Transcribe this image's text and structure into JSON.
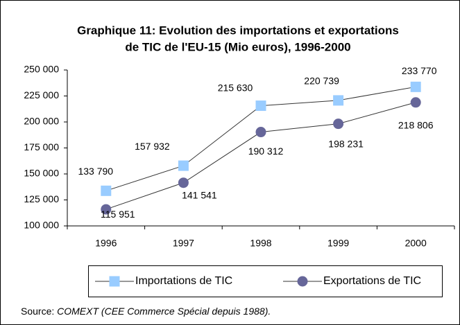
{
  "chart_data": {
    "type": "line",
    "title": [
      "Graphique 11: Evolution des importations et exportations",
      "de TIC de l'EU-15 (Mio euros), 1996-2000"
    ],
    "categories": [
      "1996",
      "1997",
      "1998",
      "1999",
      "2000"
    ],
    "series": [
      {
        "name": "Importations de TIC",
        "color": "#99ccff",
        "line_color": "#333333",
        "marker": "square",
        "values": [
          133790,
          157932,
          215630,
          220739,
          233770
        ],
        "value_labels": [
          "133 790",
          "157 932",
          "215 630",
          "220 739",
          "233 770"
        ]
      },
      {
        "name": "Exportations de TIC",
        "color": "#666699",
        "line_color": "#333333",
        "marker": "circle",
        "values": [
          115951,
          141541,
          190312,
          198231,
          218806
        ],
        "value_labels": [
          "115 951",
          "141 541",
          "190 312",
          "198 231",
          "218 806"
        ]
      }
    ],
    "ylim": [
      100000,
      250000
    ],
    "yticks": [
      {
        "value": 100000,
        "label": "100 000"
      },
      {
        "value": 125000,
        "label": "125 000"
      },
      {
        "value": 150000,
        "label": "150 000"
      },
      {
        "value": 175000,
        "label": "175 000"
      },
      {
        "value": 200000,
        "label": "200 000"
      },
      {
        "value": 225000,
        "label": "225 000"
      },
      {
        "value": 250000,
        "label": "250 000"
      }
    ],
    "grid": false,
    "legend": "bottom",
    "source_label": "Source:",
    "source_text": "COMEXT (CEE Commerce Spécial depuis 1988)."
  }
}
